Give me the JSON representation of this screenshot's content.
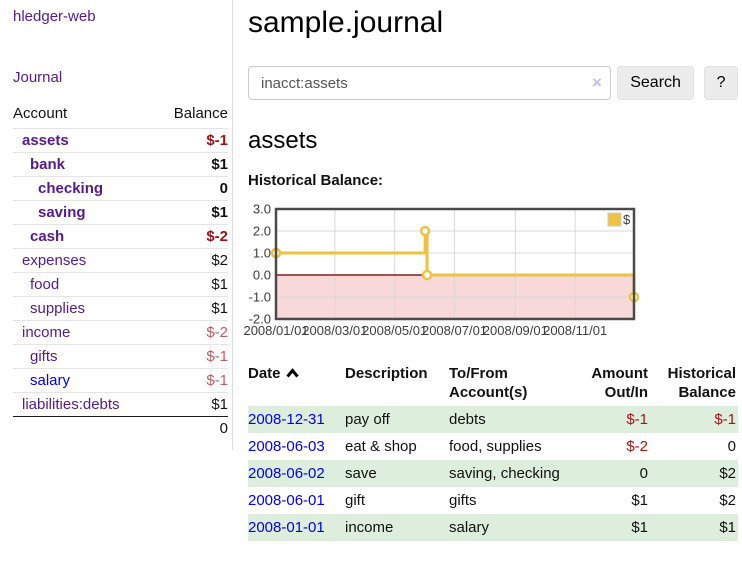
{
  "sidebar": {
    "brand": "hledger-web",
    "nav": {
      "journal": "Journal"
    },
    "accounts_table": {
      "headers": {
        "account": "Account",
        "balance": "Balance"
      },
      "rows": [
        {
          "name": "assets",
          "depth": 0,
          "inacct": true,
          "balance": "$-1"
        },
        {
          "name": "bank",
          "depth": 1,
          "inacct": true,
          "balance": "$1"
        },
        {
          "name": "checking",
          "depth": 2,
          "inacct": true,
          "balance": "0"
        },
        {
          "name": "saving",
          "depth": 2,
          "inacct": true,
          "balance": "$1"
        },
        {
          "name": "cash",
          "depth": 1,
          "inacct": true,
          "balance": "$-2"
        },
        {
          "name": "expenses",
          "depth": 0,
          "inacct": false,
          "balance": "$2"
        },
        {
          "name": "food",
          "depth": 1,
          "inacct": false,
          "balance": "$1"
        },
        {
          "name": "supplies",
          "depth": 1,
          "inacct": false,
          "balance": "$1"
        },
        {
          "name": "income",
          "depth": 0,
          "inacct": false,
          "balance": "$-2"
        },
        {
          "name": "gifts",
          "depth": 1,
          "inacct": false,
          "balance": "$-1"
        },
        {
          "name": "salary",
          "depth": 1,
          "inacct": false,
          "balance": "$-1",
          "visited": false
        },
        {
          "name": "liabilities:debts",
          "depth": 0,
          "inacct": false,
          "balance": "$1"
        }
      ],
      "total": "0"
    }
  },
  "header": {
    "title": "sample.journal"
  },
  "search": {
    "value": "inacct:assets",
    "clear_icon": "×",
    "button_label": "Search",
    "help_label": "?"
  },
  "account_page": {
    "heading": "assets",
    "chart_label": "Historical Balance:"
  },
  "chart_data": {
    "type": "line",
    "step": true,
    "title": "Historical Balance",
    "series": [
      {
        "name": "$",
        "color": "#edc240",
        "points": [
          [
            "2008-01-01",
            1
          ],
          [
            "2008-06-01",
            2
          ],
          [
            "2008-06-03",
            0
          ],
          [
            "2008-12-31",
            -1
          ]
        ]
      }
    ],
    "xlim": [
      "2008-01-01",
      "2008-12-31"
    ],
    "ylim": [
      -2,
      3
    ],
    "y_ticks": [
      3.0,
      2.0,
      1.0,
      0.0,
      -1.0,
      -2.0
    ],
    "x_tick_labels": [
      "2008/01/01",
      "2008/03/01",
      "2008/05/01",
      "2008/07/01",
      "2008/09/01",
      "2008/11/01"
    ],
    "grid": true,
    "legend_position": "top-right",
    "legend_label": "$",
    "negative_region_fill": "#f8d8d8",
    "zero_line_color": "#8b1c1c",
    "grid_color": "#d9d9d9",
    "border_color": "#4a4a4a"
  },
  "register": {
    "headers": {
      "date": [
        "Date"
      ],
      "description": [
        "Description"
      ],
      "accounts": [
        "To/From",
        "Account(s)"
      ],
      "amount": [
        "Amount",
        "Out/In"
      ],
      "balance": [
        "Historical",
        "Balance"
      ]
    },
    "sort": {
      "column": "date",
      "direction": "asc"
    },
    "rows": [
      {
        "date": "2008-12-31",
        "description": "pay off",
        "accounts": "debts",
        "amount": "$-1",
        "balance": "$-1"
      },
      {
        "date": "2008-06-03",
        "description": "eat & shop",
        "accounts": "food, supplies",
        "amount": "$-2",
        "balance": "0"
      },
      {
        "date": "2008-06-02",
        "description": "save",
        "accounts": "saving, checking",
        "amount": "0",
        "balance": "$2"
      },
      {
        "date": "2008-06-01",
        "description": "gift",
        "accounts": "gifts",
        "amount": "$1",
        "balance": "$2"
      },
      {
        "date": "2008-01-01",
        "description": "income",
        "accounts": "salary",
        "amount": "$1",
        "balance": "$1"
      }
    ]
  },
  "colors": {
    "link_purple": "#551a8b",
    "link_blue": "#0000ee",
    "negative_strong": "#991414",
    "negative_muted": "#c05e5e",
    "row_stripe_green": "#ddeedd",
    "series_gold": "#edc240"
  }
}
